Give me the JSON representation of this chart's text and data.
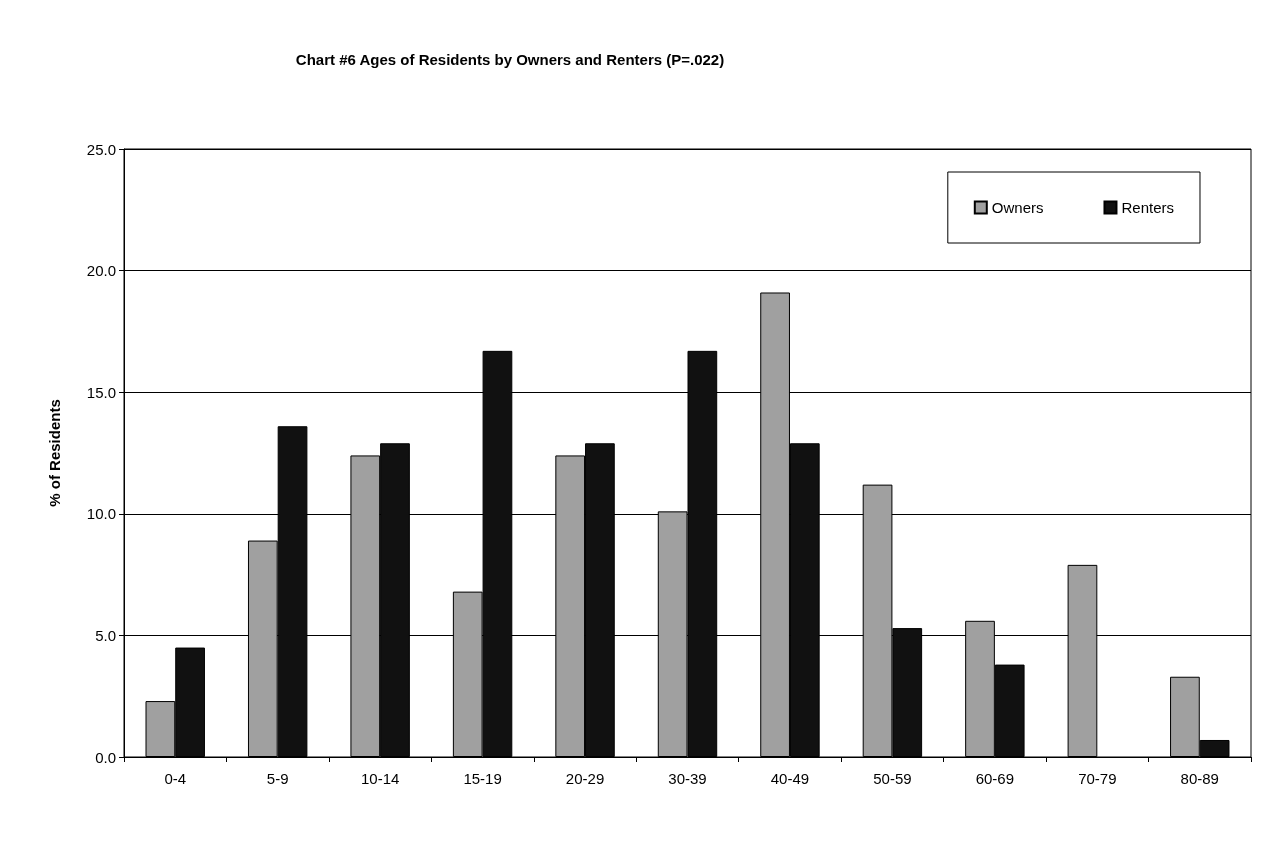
{
  "chart_data": {
    "type": "bar",
    "title": "Chart #6 Ages of Residents by Owners and Renters (P=.022)",
    "ylabel": "% of Residents",
    "categories": [
      "0-4",
      "5-9",
      "10-14",
      "15-19",
      "20-29",
      "30-39",
      "40-49",
      "50-59",
      "60-69",
      "70-79",
      "80-89"
    ],
    "series": [
      {
        "name": "Owners",
        "color": "#a0a0a0",
        "values": [
          2.3,
          8.9,
          12.4,
          6.8,
          12.4,
          10.1,
          19.1,
          11.2,
          5.6,
          7.9,
          3.3
        ]
      },
      {
        "name": "Renters",
        "color": "#111111",
        "values": [
          4.5,
          13.6,
          12.9,
          16.7,
          12.9,
          16.7,
          12.9,
          5.3,
          3.8,
          0,
          0.7
        ]
      }
    ],
    "ylim": [
      0,
      25
    ],
    "yticks": [
      {
        "value": 0,
        "label": "0.0"
      },
      {
        "value": 5,
        "label": "5.0"
      },
      {
        "value": 10,
        "label": "10.0"
      },
      {
        "value": 15,
        "label": "15.0"
      },
      {
        "value": 20,
        "label": "20.0"
      },
      {
        "value": 25,
        "label": "25.0"
      }
    ],
    "grid": "y",
    "legend": "top right"
  }
}
